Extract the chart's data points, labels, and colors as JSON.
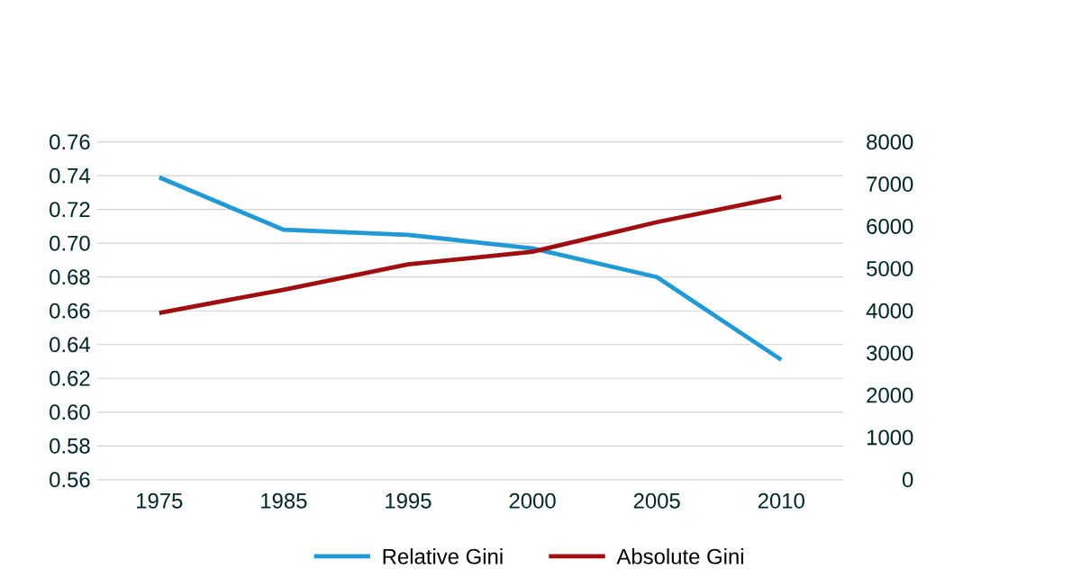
{
  "chart_data": {
    "type": "line",
    "categories": [
      "1975",
      "1985",
      "1995",
      "2000",
      "2005",
      "2010"
    ],
    "series": [
      {
        "name": "Relative Gini",
        "color": "#1f9ad6",
        "values": [
          0.739,
          0.708,
          0.705,
          0.697,
          0.68,
          0.631
        ]
      },
      {
        "name": "Absolute  Gini",
        "color": "#a00e10",
        "axis": "y2",
        "values": [
          3950,
          4500,
          5100,
          5400,
          6100,
          6700
        ]
      }
    ],
    "ylim": [
      0.56,
      0.76
    ],
    "yticks": [
      {
        "value": 0.56,
        "label": "0.56"
      },
      {
        "value": 0.58,
        "label": "0.58"
      },
      {
        "value": 0.6,
        "label": "0.60"
      },
      {
        "value": 0.62,
        "label": "0.62"
      },
      {
        "value": 0.64,
        "label": "0.64"
      },
      {
        "value": 0.66,
        "label": "0.66"
      },
      {
        "value": 0.68,
        "label": "0.68"
      },
      {
        "value": 0.7,
        "label": "0.70"
      },
      {
        "value": 0.72,
        "label": "0.72"
      },
      {
        "value": 0.74,
        "label": "0.74"
      },
      {
        "value": 0.76,
        "label": "0.76"
      }
    ],
    "y2lim": [
      0,
      8000
    ],
    "y2ticks": [
      0,
      1000,
      2000,
      3000,
      4000,
      5000,
      6000,
      7000,
      8000
    ],
    "grid": "y",
    "legend": "bottom",
    "marker": "none",
    "line_style": "solid"
  }
}
